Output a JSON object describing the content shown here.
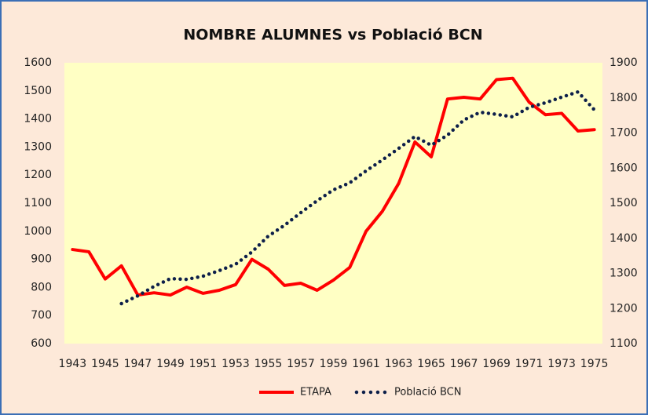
{
  "chart_data": {
    "type": "line",
    "title": "NOMBRE ALUMNES vs Població BCN",
    "categories": [
      "1943",
      null,
      "1945",
      null,
      "1947",
      null,
      "1949",
      null,
      "1951",
      null,
      "1953",
      null,
      "1955",
      null,
      "1957",
      null,
      "1959",
      null,
      "1961",
      null,
      "1963",
      null,
      "1965",
      null,
      "1967",
      null,
      "1969",
      null,
      "1971",
      null,
      "1973",
      null,
      "1975"
    ],
    "series": [
      {
        "name": "ETAPA",
        "color": "#ff0000",
        "style": "solid",
        "values": [
          935,
          927,
          830,
          877,
          773,
          781,
          773,
          801,
          779,
          790,
          810,
          900,
          865,
          807,
          815,
          790,
          826,
          871,
          1000,
          1071,
          1170,
          1318,
          1265,
          1471,
          1477,
          1471,
          1540,
          1545,
          1460,
          1415,
          1420,
          1357,
          1362
        ]
      },
      {
        "name": "Població BCN",
        "color": "#0d1f4a",
        "style": "dotted",
        "axis": "y2",
        "values": [
          null,
          null,
          null,
          1214,
          1236,
          1263,
          1285,
          1283,
          1292,
          1308,
          1326,
          1361,
          1406,
          1437,
          1473,
          1507,
          1538,
          1558,
          1592,
          1623,
          1656,
          1690,
          1665,
          1694,
          1737,
          1759,
          1753,
          1746,
          1773,
          1786,
          1802,
          1817,
          1766
        ]
      }
    ],
    "ylim": [
      600,
      1600
    ],
    "yticks": [
      600,
      700,
      800,
      900,
      1000,
      1100,
      1200,
      1300,
      1400,
      1500,
      1600
    ],
    "y2lim": [
      1100,
      1900
    ],
    "y2ticks": [
      1100,
      1200,
      1300,
      1400,
      1500,
      1600,
      1700,
      1800,
      1900
    ],
    "grid": false,
    "legend": "bottom"
  }
}
